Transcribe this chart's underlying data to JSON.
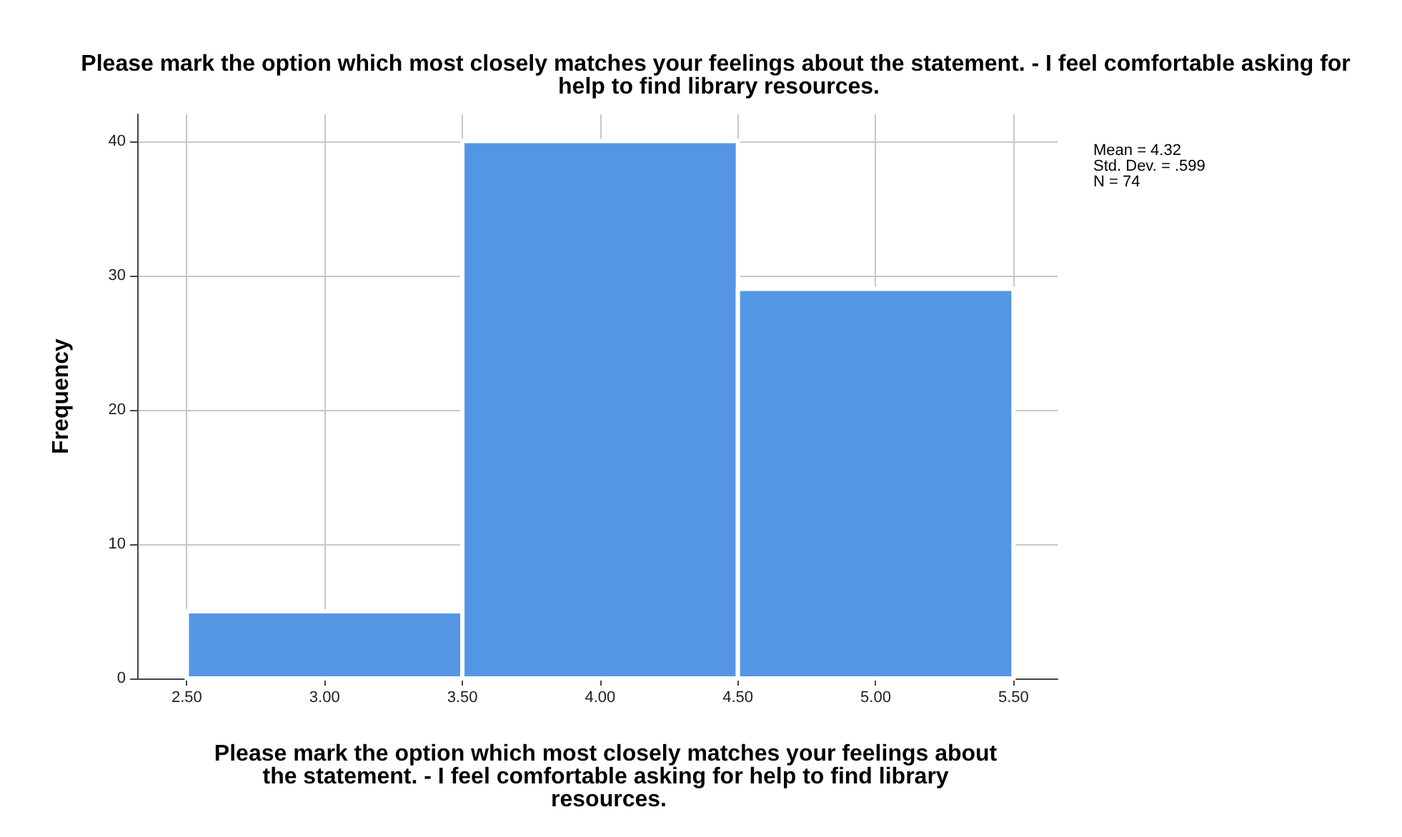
{
  "chart_data": {
    "type": "histogram",
    "title": "Please mark the option which most closely matches your feelings about the statement. - I feel comfortable asking for help to find library resources.",
    "xlabel": "Please mark the option which most closely matches your feelings about the statement. - I feel comfortable asking for help to find library resources.",
    "ylabel": "Frequency",
    "bins": [
      2.5,
      3.5,
      4.5,
      5.5
    ],
    "values": [
      5,
      40,
      29
    ],
    "color": "#5596e4",
    "xlim": [
      2.32,
      5.66
    ],
    "xticks": [
      {
        "value": 2.5,
        "label": "2.50"
      },
      {
        "value": 3,
        "label": "3.00"
      },
      {
        "value": 3.5,
        "label": "3.50"
      },
      {
        "value": 4,
        "label": "4.00"
      },
      {
        "value": 4.5,
        "label": "4.50"
      },
      {
        "value": 5,
        "label": "5.00"
      },
      {
        "value": 5.5,
        "label": "5.50"
      }
    ],
    "ylim": [
      0,
      42
    ],
    "yticks": [
      0,
      10,
      20,
      30,
      40
    ],
    "grid": true,
    "annotations": [
      "Mean = 4.32",
      "Std. Dev. = .599",
      "N = 74"
    ]
  }
}
